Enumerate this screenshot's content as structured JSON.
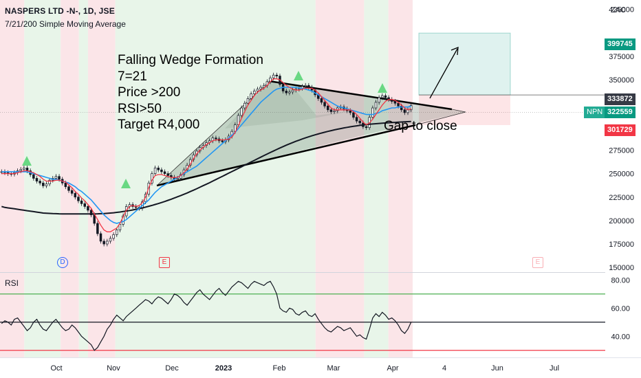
{
  "header": {
    "title": "NASPERS LTD -N-, 1D, JSE",
    "indicator": "7/21/200 Simple Moving Average",
    "currency": "ZAC"
  },
  "annotations": {
    "lines": [
      "Falling Wedge Formation",
      "7=21",
      "Price >200",
      "RSI>50",
      "Target R4,000"
    ],
    "gap": "Gap to close"
  },
  "price_tags": [
    {
      "label": "399745",
      "color": "#089981"
    },
    {
      "label": "333872",
      "color": "#363a45"
    },
    {
      "label": "322559",
      "color": "#089981"
    },
    {
      "label": "301729",
      "color": "#f23645"
    }
  ],
  "symbol_badge": "NPN",
  "events": [
    {
      "label": "D",
      "kind": "dividend"
    },
    {
      "label": "E",
      "kind": "earnings"
    },
    {
      "label": "E",
      "kind": "earnings-upcoming"
    }
  ],
  "rsi_label": "RSI",
  "colors": {
    "bg_green": "#e8f5e9",
    "bg_red": "#fbe5e8",
    "up": "#089981",
    "down": "#f23645",
    "sma7": "#f23645",
    "sma21": "#2196f3",
    "sma200": "#131722"
  },
  "chart_data": [
    {
      "type": "candlestick",
      "title": "NASPERS LTD -N-, 1D, JSE",
      "ylim": [
        145000,
        435000
      ],
      "yticks": [
        {
          "value": 425000,
          "label": "425000"
        },
        {
          "value": 375000,
          "label": "375000"
        },
        {
          "value": 350000,
          "label": "350000"
        },
        {
          "value": 275000,
          "label": "275000"
        },
        {
          "value": 250000,
          "label": "250000"
        },
        {
          "value": 225000,
          "label": "225000"
        },
        {
          "value": 200000,
          "label": "200000"
        },
        {
          "value": 175000,
          "label": "175000"
        },
        {
          "value": 150000,
          "label": "150000"
        }
      ],
      "xticks": [
        "Oct",
        "Nov",
        "Dec",
        "2023",
        "Feb",
        "Mar",
        "Apr",
        "4",
        "Jun",
        "Jul"
      ],
      "close_series": [
        252000,
        251000,
        250000,
        249500,
        251000,
        253000,
        254500,
        256000,
        253000,
        249000,
        245000,
        242000,
        240000,
        237000,
        239000,
        243000,
        245000,
        247000,
        244000,
        240000,
        236000,
        232000,
        229000,
        225000,
        221000,
        218000,
        215000,
        211000,
        206000,
        197000,
        186000,
        178000,
        175000,
        178000,
        181000,
        185000,
        190000,
        196000,
        205000,
        215000,
        217000,
        215000,
        214000,
        213000,
        220000,
        228000,
        240000,
        250000,
        256000,
        254000,
        252000,
        250000,
        248000,
        246000,
        244000,
        245000,
        249000,
        254000,
        259000,
        265000,
        270000,
        274000,
        278000,
        280000,
        283000,
        285000,
        288000,
        287000,
        285000,
        284000,
        286000,
        290000,
        295000,
        302000,
        312000,
        320000,
        325000,
        330000,
        335000,
        338000,
        340000,
        342000,
        344000,
        348000,
        352000,
        355000,
        354000,
        345000,
        338000,
        336000,
        337000,
        339000,
        340000,
        341000,
        343000,
        344000,
        342000,
        339000,
        334000,
        330000,
        326000,
        322000,
        318000,
        316000,
        317000,
        320000,
        321000,
        319000,
        317000,
        315000,
        310000,
        306000,
        304000,
        300000,
        299000,
        310000,
        320000,
        326000,
        331000,
        333000,
        331000,
        329000,
        327000,
        325000,
        322000,
        318000,
        315000,
        318000,
        322559
      ],
      "sma7": [
        250000,
        250000,
        250000,
        250000,
        250000,
        251000,
        252000,
        253000,
        253000,
        252000,
        251000,
        249000,
        247000,
        244000,
        242000,
        242000,
        242000,
        243000,
        243000,
        242000,
        241000,
        238000,
        235000,
        231000,
        228000,
        224000,
        221000,
        217000,
        213000,
        207000,
        201000,
        195000,
        190000,
        188000,
        188000,
        190000,
        192000,
        197000,
        204000,
        211000,
        215000,
        216000,
        215000,
        216000,
        219000,
        225000,
        235000,
        243000,
        248000,
        249000,
        249000,
        248000,
        247000,
        246000,
        246000,
        246000,
        248000,
        251000,
        255000,
        260000,
        266000,
        271000,
        275000,
        278000,
        281000,
        283000,
        285000,
        286000,
        286000,
        286000,
        286000,
        287000,
        289000,
        294000,
        301000,
        309000,
        316000,
        323000,
        328000,
        333000,
        337000,
        339000,
        341000,
        344000,
        348000,
        351000,
        351000,
        350000,
        347000,
        344000,
        342000,
        340000,
        339000,
        339000,
        340000,
        341000,
        341000,
        341000,
        339000,
        336000,
        332000,
        328000,
        324000,
        320000,
        318000,
        318000,
        318000,
        318000,
        318000,
        318000,
        316000,
        313000,
        309000,
        305000,
        302000,
        304000,
        308000,
        313000,
        318000,
        323000,
        327000,
        329000,
        329000,
        328000,
        326000,
        323000,
        320000,
        318000,
        319000
      ],
      "sma21": [
        252000,
        252000,
        252000,
        252000,
        252000,
        252000,
        252000,
        252000,
        252000,
        251000,
        250000,
        249000,
        248000,
        247000,
        246000,
        245000,
        244000,
        244000,
        243000,
        242000,
        241000,
        240000,
        238000,
        236000,
        233000,
        231000,
        228000,
        225000,
        222000,
        218000,
        214000,
        210000,
        206000,
        203000,
        200000,
        198000,
        197000,
        198000,
        199000,
        201000,
        204000,
        207000,
        210000,
        213000,
        216000,
        219000,
        222000,
        226000,
        230000,
        233000,
        236000,
        238000,
        240000,
        242000,
        244000,
        246000,
        248000,
        250000,
        252000,
        254000,
        256000,
        258000,
        261000,
        264000,
        267000,
        270000,
        273000,
        276000,
        279000,
        282000,
        285000,
        288000,
        291000,
        294000,
        298000,
        302000,
        306000,
        310000,
        314000,
        318000,
        322000,
        326000,
        329000,
        332000,
        335000,
        338000,
        340000,
        341000,
        342000,
        342000,
        342000,
        342000,
        342000,
        341000,
        341000,
        340000,
        339000,
        338000,
        336000,
        334000,
        332000,
        330000,
        328000,
        326000,
        324000,
        322000,
        321000,
        320000,
        319000,
        318000,
        317000,
        316000,
        315000,
        314000,
        313000,
        313000,
        313000,
        314000,
        315000,
        317000,
        318000,
        319000,
        320000,
        320000,
        321000,
        321000,
        321000,
        321000,
        322000
      ],
      "sma200": [
        215000,
        214000,
        213500,
        213000,
        212500,
        212000,
        211500,
        211000,
        210500,
        210000,
        209500,
        209000,
        208500,
        208000,
        207800,
        207600,
        207400,
        207300,
        207200,
        207100,
        207000,
        207000,
        207000,
        207000,
        207000,
        207000,
        207000,
        207000,
        207000,
        207100,
        207200,
        207300,
        207500,
        207700,
        208000,
        208300,
        208700,
        209100,
        209600,
        210100,
        210700,
        211300,
        212000,
        212700,
        213500,
        214300,
        215200,
        216100,
        217100,
        218100,
        219200,
        220300,
        221500,
        222700,
        224000,
        225300,
        226600,
        228000,
        229400,
        230900,
        232400,
        233900,
        235500,
        237100,
        238700,
        240300,
        242000,
        243700,
        245400,
        247100,
        248800,
        250500,
        252200,
        253900,
        255600,
        257300,
        259000,
        260700,
        262400,
        264100,
        265800,
        267500,
        269200,
        270900,
        272500,
        274100,
        275700,
        277300,
        278800,
        280300,
        281700,
        283100,
        284400,
        285700,
        286900,
        288100,
        289200,
        290300,
        291300,
        292300,
        293200,
        294100,
        295000,
        295800,
        296600,
        297300,
        298000,
        298700,
        299300,
        299900,
        300400,
        300900,
        301400,
        301800,
        302200,
        302600,
        302900,
        303200,
        303500,
        303800,
        304000,
        304200,
        304400,
        304600,
        304800,
        305000,
        305200,
        305400,
        305600
      ]
    },
    {
      "type": "line",
      "title": "RSI",
      "ylim": [
        25,
        85
      ],
      "yticks": [
        {
          "value": 80,
          "label": "80.00"
        },
        {
          "value": 60,
          "label": "60.00"
        },
        {
          "value": 40,
          "label": "40.00"
        }
      ],
      "levels": [
        70,
        50,
        30
      ],
      "values": [
        49,
        51,
        50,
        48,
        52,
        53,
        50,
        47,
        44,
        46,
        50,
        52,
        48,
        45,
        44,
        47,
        50,
        52,
        49,
        46,
        44,
        45,
        48,
        46,
        43,
        40,
        38,
        36,
        34,
        30,
        32,
        36,
        40,
        45,
        48,
        52,
        55,
        53,
        51,
        54,
        56,
        58,
        60,
        62,
        64,
        66,
        65,
        63,
        66,
        68,
        67,
        65,
        63,
        66,
        70,
        69,
        67,
        64,
        62,
        65,
        68,
        71,
        73,
        70,
        68,
        66,
        69,
        72,
        74,
        71,
        69,
        72,
        75,
        77,
        79,
        78,
        76,
        74,
        77,
        79,
        78,
        77,
        76,
        78,
        79,
        75,
        70,
        60,
        58,
        57,
        60,
        59,
        56,
        55,
        57,
        58,
        55,
        54,
        56,
        52,
        49,
        46,
        44,
        43,
        45,
        47,
        46,
        44,
        45,
        46,
        43,
        40,
        41,
        39,
        38,
        45,
        53,
        56,
        54,
        57,
        55,
        52,
        53,
        51,
        48,
        44,
        42,
        45,
        50
      ],
      "zones": [
        {
          "color": "bg_red",
          "from": 0.0,
          "to": 0.04
        },
        {
          "color": "bg_green",
          "from": 0.04,
          "to": 0.1
        },
        {
          "color": "bg_red",
          "from": 0.1,
          "to": 0.13
        },
        {
          "color": "bg_green",
          "from": 0.13,
          "to": 0.145
        },
        {
          "color": "bg_red",
          "from": 0.145,
          "to": 0.19
        },
        {
          "color": "bg_green",
          "from": 0.19,
          "to": 0.52
        },
        {
          "color": "bg_red",
          "from": 0.52,
          "to": 0.6
        },
        {
          "color": "bg_green",
          "from": 0.6,
          "to": 0.64
        },
        {
          "color": "bg_red",
          "from": 0.64,
          "to": 0.68
        }
      ]
    }
  ]
}
